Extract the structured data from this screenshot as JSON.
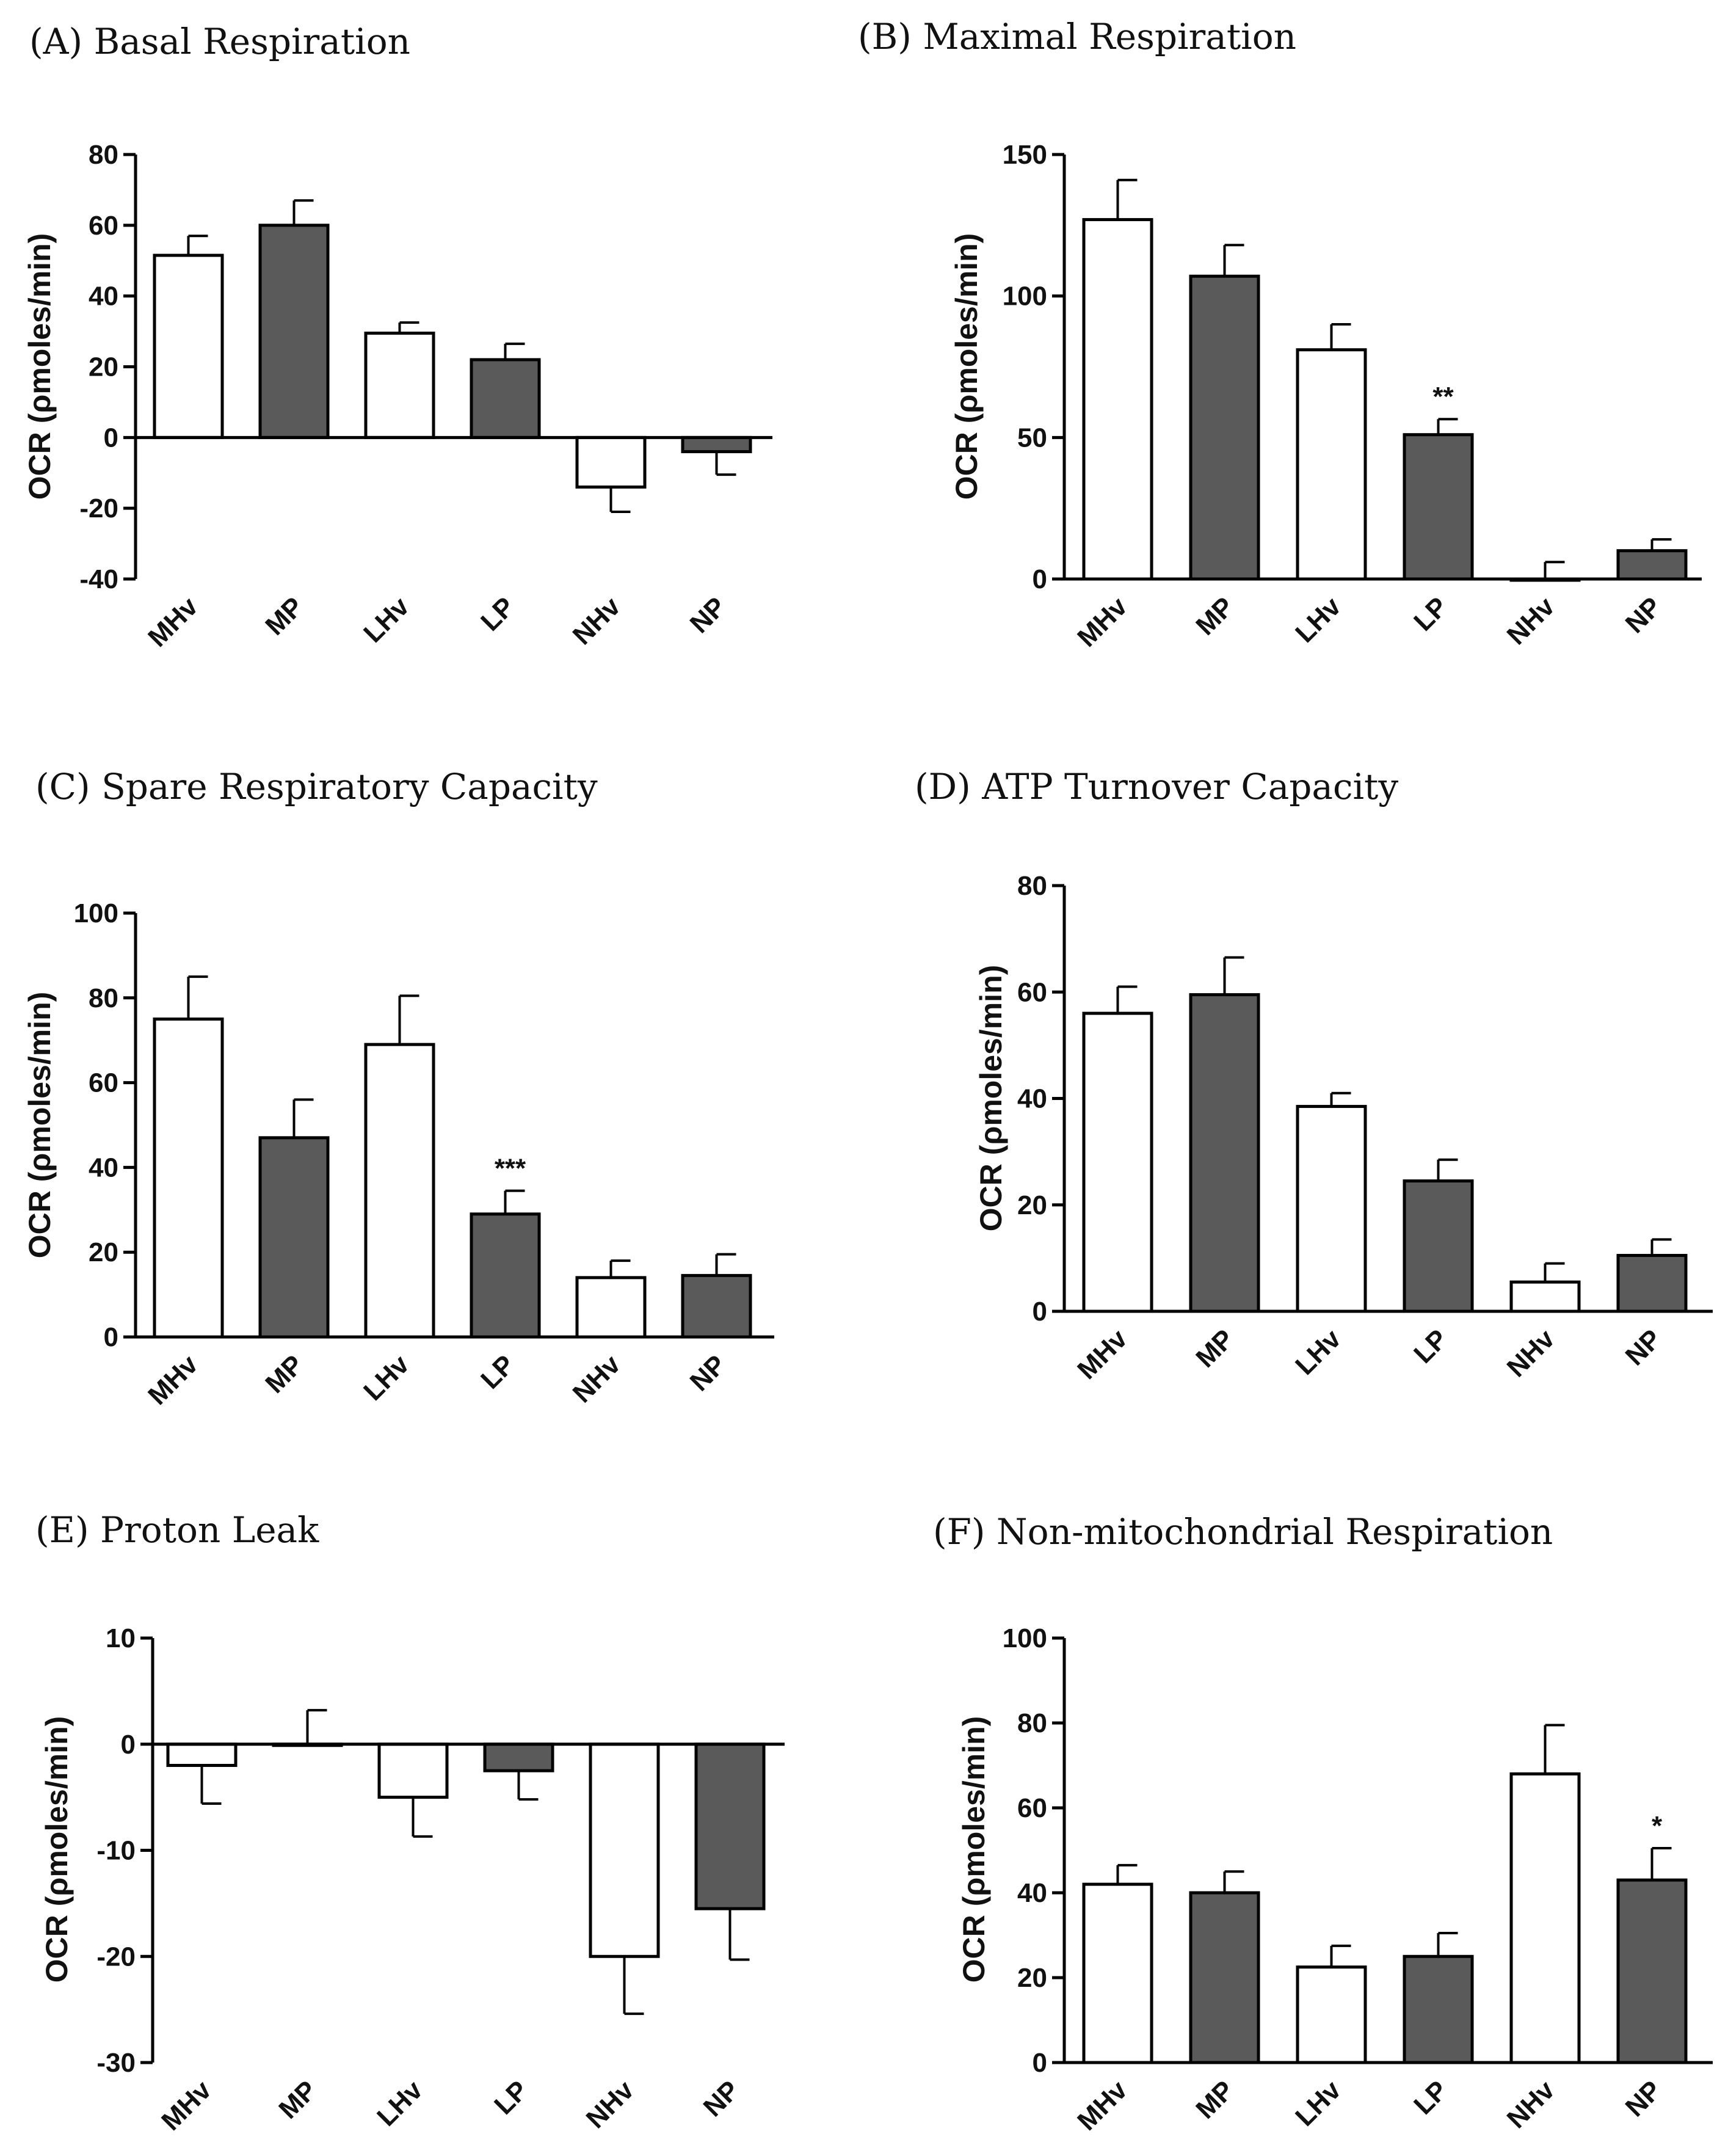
{
  "chart_data": [
    {
      "type": "bar",
      "title": "(A) Basal Respiration",
      "ylabel": "OCR (ρmoles/min)",
      "xlabel": "",
      "ylim": [
        -40,
        80
      ],
      "yticks": [
        -40,
        -20,
        0,
        20,
        40,
        60,
        80
      ],
      "categories": [
        "MHv",
        "MP",
        "LHv",
        "LP",
        "NHv",
        "NP"
      ],
      "values": [
        51.5,
        60,
        29.5,
        22,
        -14,
        -4
      ],
      "errors": [
        5.5,
        7,
        3,
        4.5,
        7,
        6.5
      ],
      "fills": [
        "white",
        "gray",
        "white",
        "gray",
        "white",
        "gray"
      ],
      "annotations": [
        "",
        "",
        "",
        "",
        "",
        ""
      ]
    },
    {
      "type": "bar",
      "title": "(B) Maximal Respiration",
      "ylabel": "OCR (ρmoles/min)",
      "xlabel": "",
      "ylim": [
        0,
        150
      ],
      "yticks": [
        0,
        50,
        100,
        150
      ],
      "categories": [
        "MHv",
        "MP",
        "LHv",
        "LP",
        "NHv",
        "NP"
      ],
      "values": [
        127,
        107,
        81,
        51,
        0,
        10
      ],
      "errors": [
        14,
        11,
        9,
        5.5,
        6,
        4
      ],
      "fills": [
        "white",
        "gray",
        "white",
        "gray",
        "white",
        "gray"
      ],
      "annotations": [
        "",
        "",
        "",
        "**",
        "",
        ""
      ]
    },
    {
      "type": "bar",
      "title": "(C) Spare Respiratory Capacity",
      "ylabel": "OCR (ρmoles/min)",
      "xlabel": "",
      "ylim": [
        0,
        100
      ],
      "yticks": [
        0,
        20,
        40,
        60,
        80,
        100
      ],
      "categories": [
        "MHv",
        "MP",
        "LHv",
        "LP",
        "NHv",
        "NP"
      ],
      "values": [
        75,
        47,
        69,
        29,
        14,
        14.5
      ],
      "errors": [
        10,
        9,
        11.5,
        5.5,
        4,
        5
      ],
      "fills": [
        "white",
        "gray",
        "white",
        "gray",
        "white",
        "gray"
      ],
      "annotations": [
        "",
        "",
        "",
        "***",
        "",
        ""
      ]
    },
    {
      "type": "bar",
      "title": "(D) ATP Turnover Capacity",
      "ylabel": "OCR (ρmoles/min)",
      "xlabel": "",
      "ylim": [
        0,
        80
      ],
      "yticks": [
        0,
        20,
        40,
        60,
        80
      ],
      "categories": [
        "MHv",
        "MP",
        "LHv",
        "LP",
        "NHv",
        "NP"
      ],
      "values": [
        56,
        59.5,
        38.5,
        24.5,
        5.5,
        10.5
      ],
      "errors": [
        5,
        7,
        2.5,
        4,
        3.5,
        3
      ],
      "fills": [
        "white",
        "gray",
        "white",
        "gray",
        "white",
        "gray"
      ],
      "annotations": [
        "",
        "",
        "",
        "",
        "",
        ""
      ]
    },
    {
      "type": "bar",
      "title": "(E) Proton Leak",
      "ylabel": "OCR (ρmoles/min)",
      "xlabel": "",
      "ylim": [
        -30,
        10
      ],
      "yticks": [
        -30,
        -20,
        -10,
        0,
        10
      ],
      "categories": [
        "MHv",
        "MP",
        "LHv",
        "LP",
        "NHv",
        "NP"
      ],
      "values": [
        -2,
        0,
        -5,
        -2.5,
        -20,
        -15.5
      ],
      "errors": [
        3.6,
        3.2,
        3.7,
        2.7,
        5.4,
        4.8
      ],
      "fills": [
        "white",
        "gray",
        "white",
        "gray",
        "white",
        "gray"
      ],
      "annotations": [
        "",
        "",
        "",
        "",
        "",
        ""
      ]
    },
    {
      "type": "bar",
      "title": "(F) Non-mitochondrial Respiration",
      "ylabel": "OCR (ρmoles/min)",
      "xlabel": "",
      "ylim": [
        0,
        100
      ],
      "yticks": [
        0,
        20,
        40,
        60,
        80,
        100
      ],
      "categories": [
        "MHv",
        "MP",
        "LHv",
        "LP",
        "NHv",
        "NP"
      ],
      "values": [
        42,
        40,
        22.5,
        25,
        68,
        43
      ],
      "errors": [
        4.5,
        5,
        5,
        5.5,
        11.5,
        7.5
      ],
      "fills": [
        "white",
        "gray",
        "white",
        "gray",
        "white",
        "gray"
      ],
      "annotations": [
        "",
        "",
        "",
        "",
        "",
        "*"
      ]
    }
  ],
  "colors": {
    "white_bar": "#ffffff",
    "gray_bar": "#5a5a5a",
    "axis": "#000000"
  }
}
